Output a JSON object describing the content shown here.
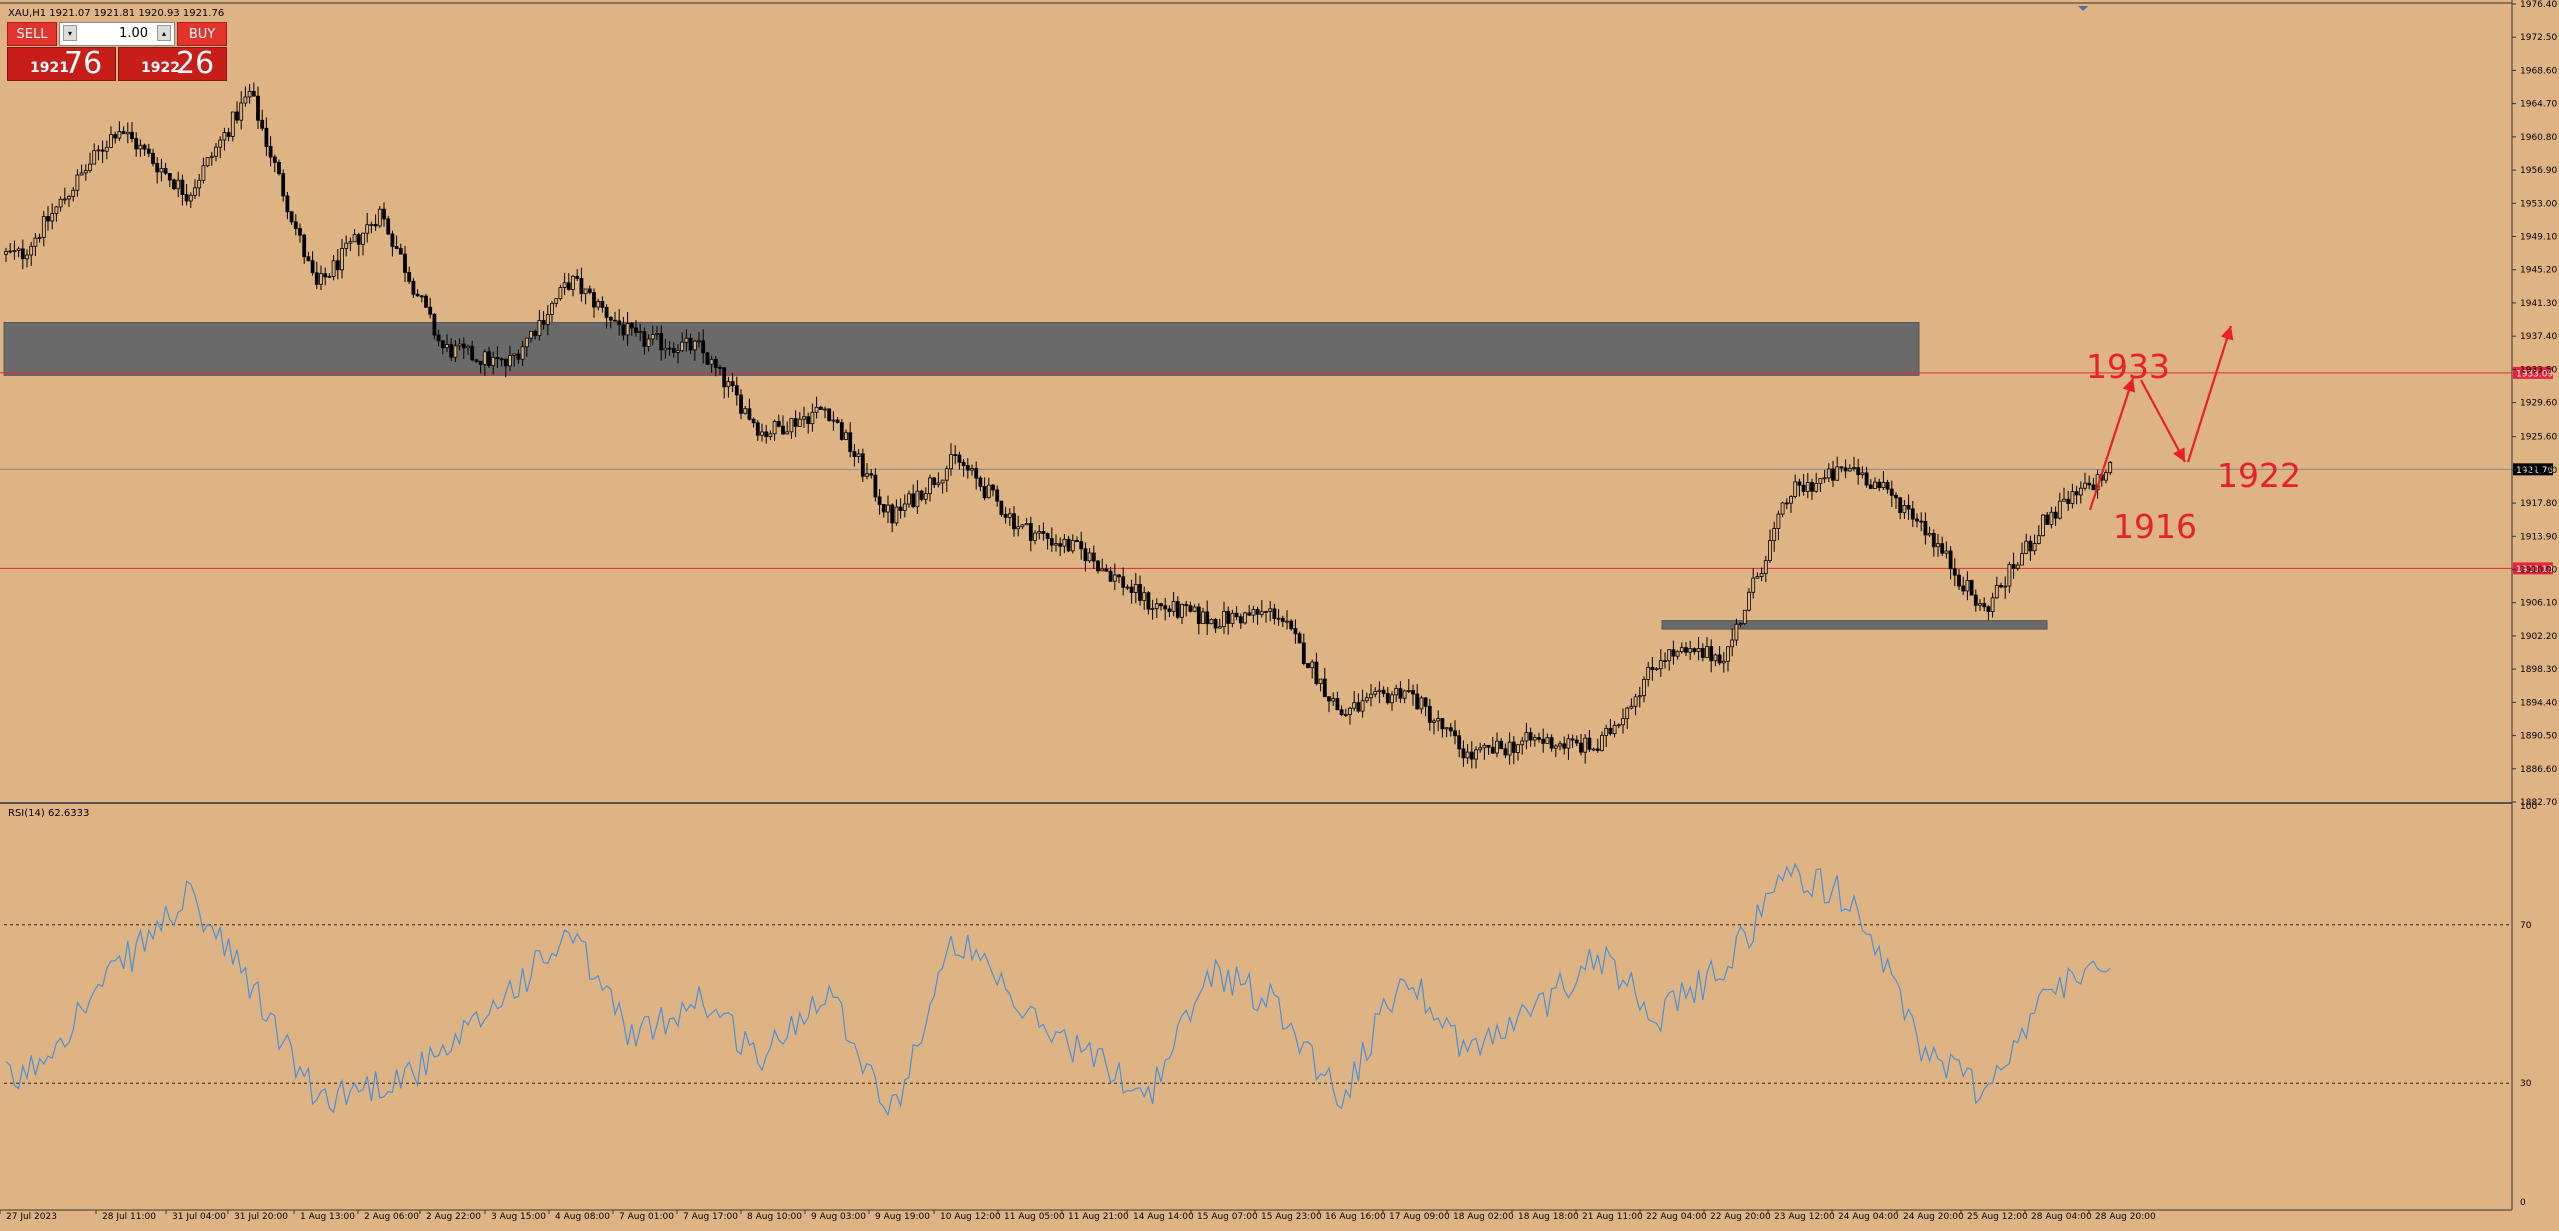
{
  "symbol_bar": {
    "text": "XAU,H1  1921.07 1921.81 1920.93 1921.76"
  },
  "trade_panel": {
    "sell_label": "SELL",
    "buy_label": "BUY",
    "lot_value": "1.00",
    "down_glyph": "▾",
    "up_glyph": "▴",
    "sell_price_small": "1921",
    "sell_price_big": "76",
    "buy_price_small": "1922",
    "buy_price_big": "26"
  },
  "price_axis": {
    "ticks": [
      "1976.40",
      "1972.50",
      "1968.60",
      "1964.70",
      "1960.80",
      "1956.90",
      "1953.00",
      "1949.10",
      "1945.20",
      "1941.30",
      "1937.40",
      "1933.50",
      "1929.60",
      "1925.60",
      "1921.70",
      "1917.80",
      "1913.90",
      "1910.00",
      "1906.10",
      "1902.20",
      "1898.30",
      "1894.40",
      "1890.50",
      "1886.60",
      "1882.70"
    ],
    "ylim": [
      1882.7,
      1976.4
    ]
  },
  "price_tags": [
    {
      "name": "resistance-line-tag",
      "price": 1933.09,
      "label": "1933.09",
      "color": "#e8243a"
    },
    {
      "name": "current-price-tag",
      "price": 1921.76,
      "label": "1921.76",
      "color": "#000000"
    },
    {
      "name": "support-line-tag",
      "price": 1910.13,
      "label": "1910.13",
      "color": "#e8243a"
    }
  ],
  "rsi": {
    "label": "RSI(14) 62.6333",
    "ticks": [
      "100",
      "70",
      "30",
      "0"
    ],
    "levels": [
      70,
      30
    ],
    "line_color": "#4a90d9"
  },
  "time_axis": {
    "labels": [
      "27 Jul 2023",
      "28 Jul 11:00",
      "31 Jul 04:00",
      "31 Jul 20:00",
      "1 Aug 13:00",
      "2 Aug 06:00",
      "2 Aug 22:00",
      "3 Aug 15:00",
      "4 Aug 08:00",
      "7 Aug 01:00",
      "7 Aug 17:00",
      "8 Aug 10:00",
      "9 Aug 03:00",
      "9 Aug 19:00",
      "10 Aug 12:00",
      "11 Aug 05:00",
      "11 Aug 21:00",
      "14 Aug 14:00",
      "15 Aug 07:00",
      "15 Aug 23:00",
      "16 Aug 16:00",
      "17 Aug 09:00",
      "18 Aug 02:00",
      "18 Aug 18:00",
      "21 Aug 11:00",
      "22 Aug 04:00",
      "22 Aug 20:00",
      "23 Aug 12:00",
      "24 Aug 04:00",
      "24 Aug 20:00",
      "25 Aug 12:00",
      "28 Aug 04:00",
      "28 Aug 20:00"
    ]
  },
  "zones": [
    {
      "name": "resistance-zone",
      "price_top": 1939.0,
      "price_bottom": 1932.8,
      "start": "27 Jul 2023",
      "end": "24 Aug 20:00"
    },
    {
      "name": "support-zone",
      "price_top": 1904.0,
      "price_bottom": 1903.0,
      "start": "22 Aug 04:00",
      "end": "28 Aug 04:00"
    }
  ],
  "annotations": {
    "label_1933": "1933",
    "label_1922": "1922",
    "label_1916": "1916",
    "color": "#e8202a"
  },
  "chart_data": {
    "type": "candlestick",
    "symbol": "XAU",
    "timeframe": "H1",
    "last_ohlc": {
      "open": 1921.07,
      "high": 1921.81,
      "low": 1920.93,
      "close": 1921.76
    },
    "ylim": [
      1882.7,
      1976.4
    ],
    "close_path": [
      [
        "27 Jul 2023",
        1947.0
      ],
      [
        "28 Jul 11:00",
        1962.0
      ],
      [
        "31 Jul 04:00",
        1954.0
      ],
      [
        "31 Jul 20:00",
        1966.0
      ],
      [
        "1 Aug 13:00",
        1943.0
      ],
      [
        "2 Aug 06:00",
        1952.0
      ],
      [
        "2 Aug 22:00",
        1936.0
      ],
      [
        "3 Aug 15:00",
        1934.0
      ],
      [
        "4 Aug 08:00",
        1944.0
      ],
      [
        "7 Aug 01:00",
        1937.0
      ],
      [
        "7 Aug 17:00",
        1936.0
      ],
      [
        "8 Aug 10:00",
        1926.0
      ],
      [
        "9 Aug 03:00",
        1929.0
      ],
      [
        "9 Aug 19:00",
        1916.0
      ],
      [
        "10 Aug 12:00",
        1923.0
      ],
      [
        "11 Aug 05:00",
        1915.0
      ],
      [
        "11 Aug 21:00",
        1912.0
      ],
      [
        "14 Aug 14:00",
        1906.0
      ],
      [
        "15 Aug 07:00",
        1904.0
      ],
      [
        "15 Aug 23:00",
        1905.0
      ],
      [
        "16 Aug 16:00",
        1893.0
      ],
      [
        "17 Aug 09:00",
        1896.0
      ],
      [
        "18 Aug 02:00",
        1888.0
      ],
      [
        "18 Aug 18:00",
        1890.0
      ],
      [
        "21 Aug 11:00",
        1889.0
      ],
      [
        "22 Aug 04:00",
        1900.0
      ],
      [
        "22 Aug 20:00",
        1900.0
      ],
      [
        "23 Aug 12:00",
        1919.0
      ],
      [
        "24 Aug 04:00",
        1922.0
      ],
      [
        "24 Aug 20:00",
        1916.0
      ],
      [
        "25 Aug 12:00",
        1905.0
      ],
      [
        "28 Aug 04:00",
        1916.0
      ],
      [
        "28 Aug 20:00",
        1921.76
      ]
    ],
    "rsi_path": [
      [
        "27 Jul 2023",
        31
      ],
      [
        "28 Jul 11:00",
        59
      ],
      [
        "31 Jul 04:00",
        77
      ],
      [
        "31 Jul 20:00",
        55
      ],
      [
        "1 Aug 13:00",
        26
      ],
      [
        "2 Aug 06:00",
        30
      ],
      [
        "2 Aug 22:00",
        36
      ],
      [
        "3 Aug 15:00",
        53
      ],
      [
        "4 Aug 08:00",
        67
      ],
      [
        "7 Aug 01:00",
        41
      ],
      [
        "7 Aug 17:00",
        52
      ],
      [
        "8 Aug 10:00",
        36
      ],
      [
        "9 Aug 03:00",
        55
      ],
      [
        "9 Aug 19:00",
        22
      ],
      [
        "10 Aug 12:00",
        67
      ],
      [
        "11 Aug 05:00",
        48
      ],
      [
        "11 Aug 21:00",
        38
      ],
      [
        "14 Aug 14:00",
        27
      ],
      [
        "15 Aug 07:00",
        59
      ],
      [
        "15 Aug 23:00",
        50
      ],
      [
        "16 Aug 16:00",
        26
      ],
      [
        "17 Aug 09:00",
        58
      ],
      [
        "18 Aug 02:00",
        38
      ],
      [
        "18 Aug 18:00",
        48
      ],
      [
        "21 Aug 11:00",
        63
      ],
      [
        "22 Aug 04:00",
        47
      ],
      [
        "22 Aug 20:00",
        60
      ],
      [
        "23 Aug 12:00",
        84
      ],
      [
        "24 Aug 04:00",
        76
      ],
      [
        "24 Aug 20:00",
        40
      ],
      [
        "25 Aug 12:00",
        28
      ],
      [
        "28 Aug 04:00",
        52
      ],
      [
        "28 Aug 20:00",
        62.63
      ]
    ]
  }
}
